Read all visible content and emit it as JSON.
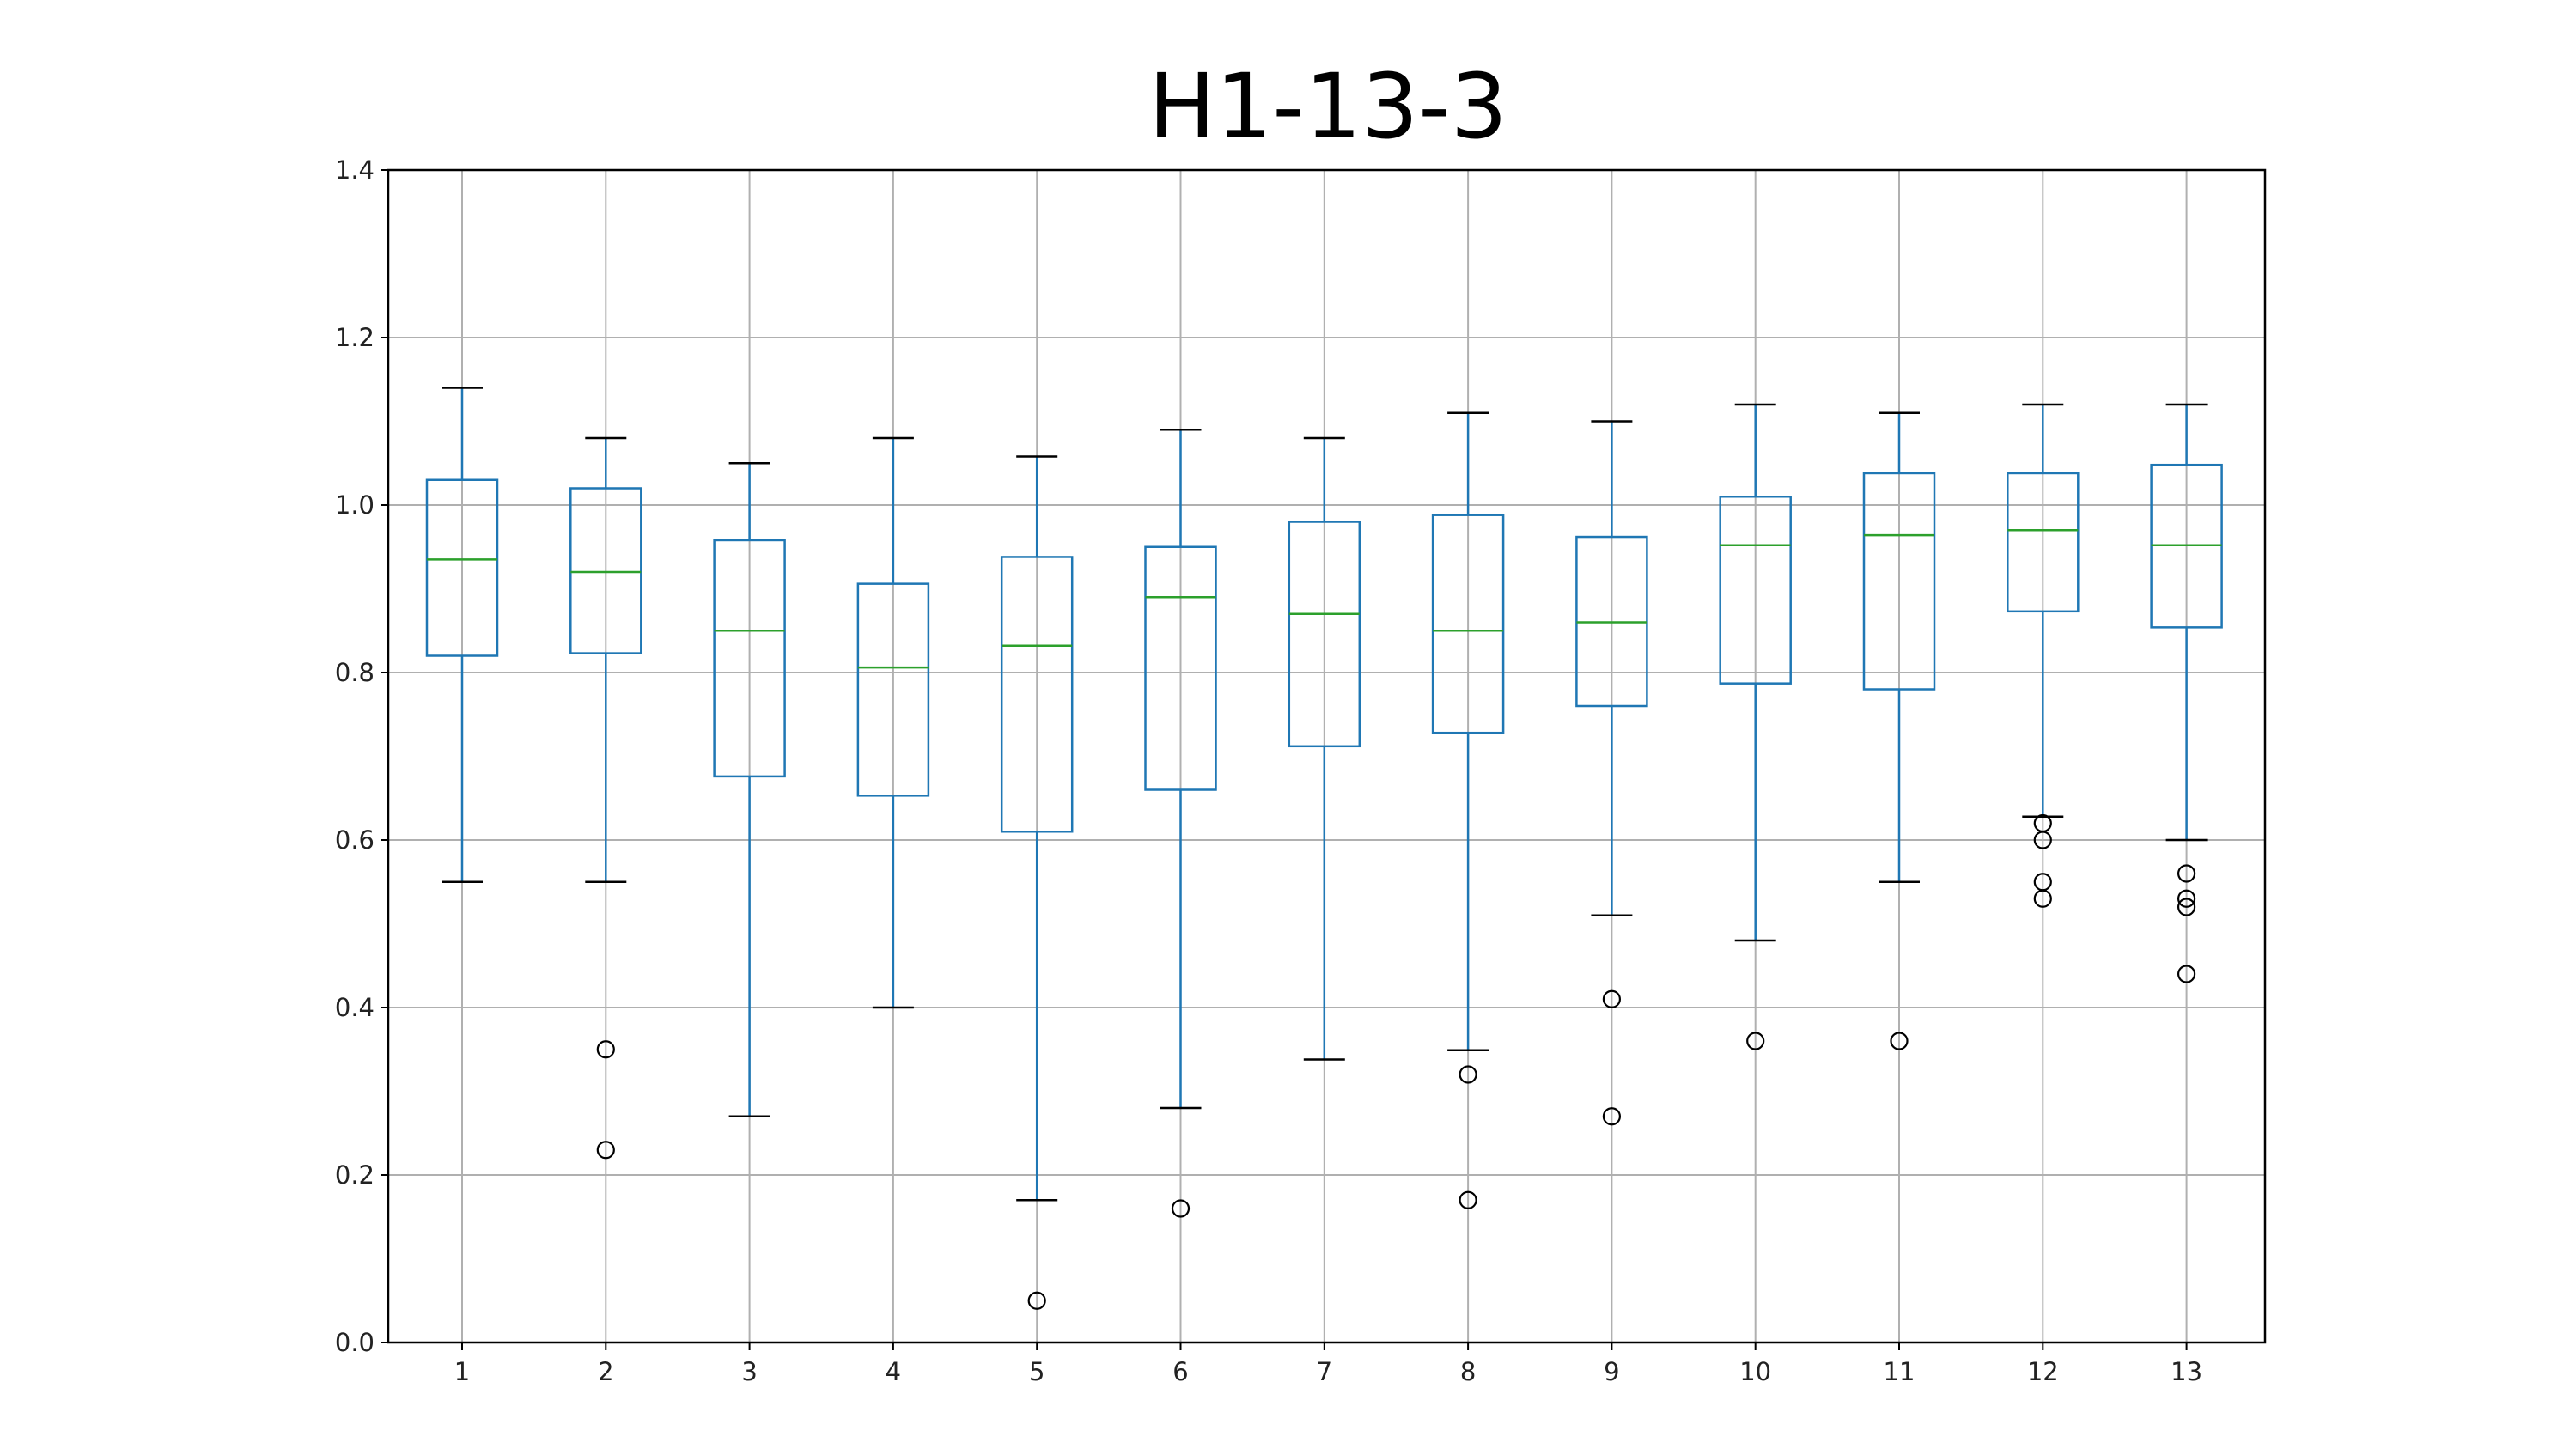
{
  "chart_data": {
    "type": "boxplot",
    "title": "H1-13-3",
    "xlabel": "",
    "ylabel": "",
    "ylim": [
      0.0,
      1.4
    ],
    "yticks": [
      "0.0",
      "0.2",
      "0.4",
      "0.6",
      "0.8",
      "1.0",
      "1.2",
      "1.4"
    ],
    "grid": true,
    "categories": [
      "1",
      "2",
      "3",
      "4",
      "5",
      "6",
      "7",
      "8",
      "9",
      "10",
      "11",
      "12",
      "13"
    ],
    "boxes": [
      {
        "label": "1",
        "whisker_low": 0.55,
        "q1": 0.82,
        "median": 0.935,
        "q3": 1.03,
        "whisker_high": 1.14,
        "outliers": []
      },
      {
        "label": "2",
        "whisker_low": 0.55,
        "q1": 0.823,
        "median": 0.92,
        "q3": 1.02,
        "whisker_high": 1.08,
        "outliers": [
          0.35,
          0.23
        ]
      },
      {
        "label": "3",
        "whisker_low": 0.27,
        "q1": 0.676,
        "median": 0.85,
        "q3": 0.958,
        "whisker_high": 1.05,
        "outliers": []
      },
      {
        "label": "4",
        "whisker_low": 0.4,
        "q1": 0.653,
        "median": 0.806,
        "q3": 0.906,
        "whisker_high": 1.08,
        "outliers": []
      },
      {
        "label": "5",
        "whisker_low": 0.17,
        "q1": 0.61,
        "median": 0.832,
        "q3": 0.938,
        "whisker_high": 1.058,
        "outliers": [
          0.05
        ]
      },
      {
        "label": "6",
        "whisker_low": 0.28,
        "q1": 0.66,
        "median": 0.89,
        "q3": 0.95,
        "whisker_high": 1.09,
        "outliers": [
          0.16
        ]
      },
      {
        "label": "7",
        "whisker_low": 0.338,
        "q1": 0.712,
        "median": 0.87,
        "q3": 0.98,
        "whisker_high": 1.08,
        "outliers": []
      },
      {
        "label": "8",
        "whisker_low": 0.349,
        "q1": 0.728,
        "median": 0.85,
        "q3": 0.988,
        "whisker_high": 1.11,
        "outliers": [
          0.32,
          0.17
        ]
      },
      {
        "label": "9",
        "whisker_low": 0.51,
        "q1": 0.76,
        "median": 0.86,
        "q3": 0.962,
        "whisker_high": 1.1,
        "outliers": [
          0.41,
          0.27
        ]
      },
      {
        "label": "10",
        "whisker_low": 0.48,
        "q1": 0.787,
        "median": 0.952,
        "q3": 1.01,
        "whisker_high": 1.12,
        "outliers": [
          0.36
        ]
      },
      {
        "label": "11",
        "whisker_low": 0.55,
        "q1": 0.78,
        "median": 0.964,
        "q3": 1.038,
        "whisker_high": 1.11,
        "outliers": [
          0.36
        ]
      },
      {
        "label": "12",
        "whisker_low": 0.628,
        "q1": 0.873,
        "median": 0.97,
        "q3": 1.038,
        "whisker_high": 1.12,
        "outliers": [
          0.62,
          0.6,
          0.55,
          0.53
        ]
      },
      {
        "label": "13",
        "whisker_low": 0.6,
        "q1": 0.854,
        "median": 0.952,
        "q3": 1.048,
        "whisker_high": 1.12,
        "outliers": [
          0.56,
          0.53,
          0.52,
          0.44
        ]
      }
    ],
    "colors": {
      "box": "#1f77b4",
      "median": "#2ca02c",
      "whisker_cap": "#000000",
      "outlier": "#000000",
      "grid": "#b0b0b0",
      "axes": "#000000"
    }
  }
}
